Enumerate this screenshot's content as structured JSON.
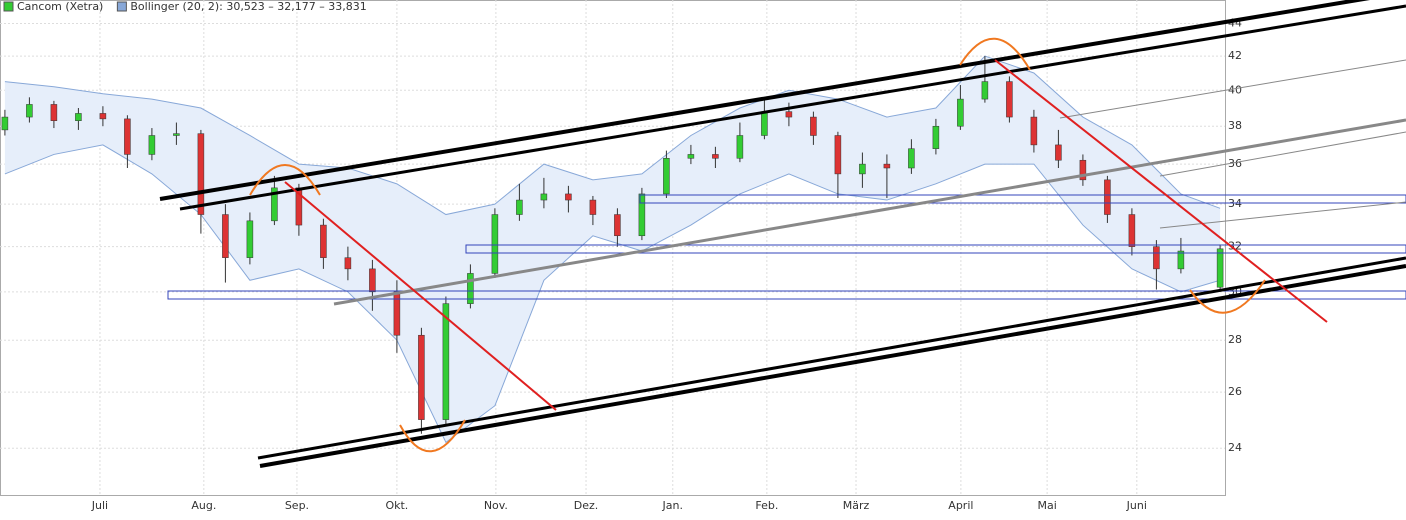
{
  "chart_data": {
    "type": "candlestick",
    "log_scale": true,
    "grid": true,
    "xlim": [
      0,
      250
    ],
    "ylim": [
      22.45,
      45.5
    ],
    "yticks": [
      24,
      26,
      28,
      30,
      32,
      34,
      36,
      38,
      40,
      42,
      44
    ],
    "xticks": [
      {
        "value": 20.4,
        "label": "Juli"
      },
      {
        "value": 41.6,
        "label": "Aug."
      },
      {
        "value": 60.6,
        "label": "Sep."
      },
      {
        "value": 81,
        "label": "Okt."
      },
      {
        "value": 101.2,
        "label": "Nov."
      },
      {
        "value": 119.6,
        "label": "Dez."
      },
      {
        "value": 137.3,
        "label": "Jan."
      },
      {
        "value": 156.5,
        "label": "Feb."
      },
      {
        "value": 174.7,
        "label": "März"
      },
      {
        "value": 196.1,
        "label": "April"
      },
      {
        "value": 213.7,
        "label": "Mai"
      },
      {
        "value": 232,
        "label": "Juni"
      }
    ],
    "series": [
      {
        "name": "Cancom (Xetra)",
        "color": "#3c3",
        "down_color": "#d33",
        "x": [
          1,
          6,
          11,
          16,
          21,
          26,
          31,
          36,
          41,
          46,
          51,
          56,
          61,
          66,
          71,
          76,
          81,
          86,
          91,
          96,
          101,
          106,
          111,
          116,
          121,
          126,
          131,
          136,
          141,
          146,
          151,
          156,
          161,
          166,
          171,
          176,
          181,
          186,
          191,
          196,
          201,
          206,
          211,
          216,
          221,
          226,
          231,
          236,
          241,
          249
        ],
        "open": [
          37.8,
          38.5,
          39.2,
          38.3,
          38.7,
          38.4,
          36.5,
          37.5,
          37.6,
          33.5,
          31.5,
          33.2,
          34.8,
          33.0,
          31.5,
          31.0,
          30.0,
          28.2,
          25.0,
          29.5,
          30.8,
          33.5,
          34.2,
          34.5,
          34.2,
          33.5,
          32.5,
          34.5,
          36.3,
          36.5,
          36.3,
          37.5,
          38.8,
          38.5,
          37.5,
          35.5,
          36.0,
          35.8,
          36.8,
          38.0,
          39.5,
          40.5,
          38.5,
          37.0,
          36.2,
          35.2,
          33.5,
          32.0,
          31.0,
          30.2
        ],
        "high": [
          38.9,
          39.6,
          39.4,
          39.0,
          39.1,
          38.6,
          37.9,
          38.2,
          37.8,
          34.0,
          33.6,
          35.4,
          35.0,
          33.3,
          32.0,
          31.4,
          30.5,
          28.5,
          29.8,
          31.2,
          33.8,
          35.0,
          35.3,
          34.9,
          34.4,
          33.8,
          34.8,
          36.7,
          37.0,
          36.9,
          38.2,
          39.5,
          39.3,
          38.8,
          37.7,
          36.6,
          36.5,
          37.3,
          38.4,
          40.3,
          42.0,
          40.8,
          38.9,
          37.8,
          36.5,
          35.4,
          33.8,
          32.3,
          32.4,
          32.1
        ],
        "low": [
          37.5,
          38.2,
          37.9,
          37.8,
          38.0,
          35.8,
          36.2,
          37.0,
          32.6,
          30.4,
          31.2,
          33.0,
          32.5,
          31.0,
          30.5,
          29.2,
          27.5,
          24.5,
          24.8,
          29.3,
          30.6,
          33.2,
          33.8,
          33.6,
          33.0,
          32.0,
          32.3,
          34.3,
          36.0,
          35.8,
          36.1,
          37.3,
          38.0,
          37.0,
          34.3,
          34.8,
          34.3,
          35.5,
          36.5,
          37.8,
          39.3,
          38.2,
          36.6,
          35.8,
          34.9,
          33.1,
          31.6,
          30.1,
          30.8,
          30.0
        ],
        "close": [
          38.5,
          39.2,
          38.3,
          38.7,
          38.4,
          36.5,
          37.5,
          37.6,
          33.5,
          31.5,
          33.2,
          34.8,
          33.0,
          31.5,
          31.0,
          30.0,
          28.2,
          25.0,
          29.5,
          30.8,
          33.5,
          34.2,
          34.5,
          34.2,
          33.5,
          32.5,
          34.5,
          36.3,
          36.5,
          36.3,
          37.5,
          38.8,
          38.5,
          37.5,
          35.5,
          36.0,
          35.8,
          36.8,
          38.0,
          39.5,
          40.5,
          38.5,
          37.0,
          36.2,
          35.2,
          33.5,
          32.0,
          31.0,
          31.8,
          31.9
        ]
      },
      {
        "name": "Bollinger (20, 2): 30,523 – 32,177 – 33,831",
        "color": "#88a8d8",
        "fill": "#e6eefa",
        "x": [
          1,
          11,
          21,
          31,
          41,
          51,
          61,
          71,
          81,
          91,
          101,
          111,
          121,
          131,
          141,
          151,
          161,
          171,
          181,
          191,
          201,
          211,
          221,
          231,
          241,
          249
        ],
        "upper": [
          40.5,
          40.2,
          39.8,
          39.5,
          39.0,
          37.5,
          36.0,
          35.8,
          35.0,
          33.5,
          34.0,
          36.0,
          35.2,
          35.5,
          37.5,
          39.0,
          40.0,
          39.5,
          38.5,
          39.0,
          42.0,
          41.0,
          38.5,
          37.0,
          34.5,
          33.8
        ],
        "lower": [
          35.5,
          36.5,
          37.0,
          35.5,
          33.5,
          30.5,
          31.0,
          30.0,
          28.0,
          24.2,
          25.5,
          30.5,
          32.5,
          31.8,
          33.0,
          34.5,
          35.5,
          34.5,
          34.2,
          35.0,
          36.0,
          36.0,
          33.0,
          31.0,
          30.0,
          30.5
        ]
      }
    ]
  }
}
